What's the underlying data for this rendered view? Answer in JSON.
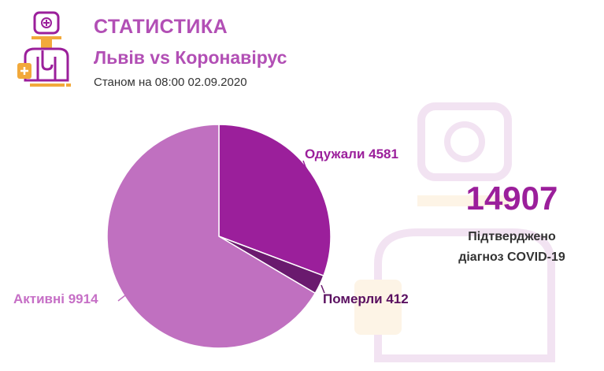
{
  "header": {
    "title": "СТАТИСТИКА",
    "subtitle": "Львів vs Коронавірус",
    "date": "Станом на 08:00 02.09.2020"
  },
  "logo_icon": "doctor-icon",
  "total": {
    "value": "14907",
    "line1": "Підтверджено",
    "line2": "діагноз COVID-19"
  },
  "colors": {
    "recovered": "#9b1f9b",
    "died": "#6a1a6e",
    "active": "#c070c0",
    "accent": "#b24fb5"
  },
  "chart_data": {
    "type": "pie",
    "categories": [
      "Одужали",
      "Померли",
      "Активні"
    ],
    "values": [
      4581,
      412,
      9914
    ],
    "labels": [
      "Одужали 4581",
      "Померли 412",
      "Активні 9914"
    ]
  }
}
